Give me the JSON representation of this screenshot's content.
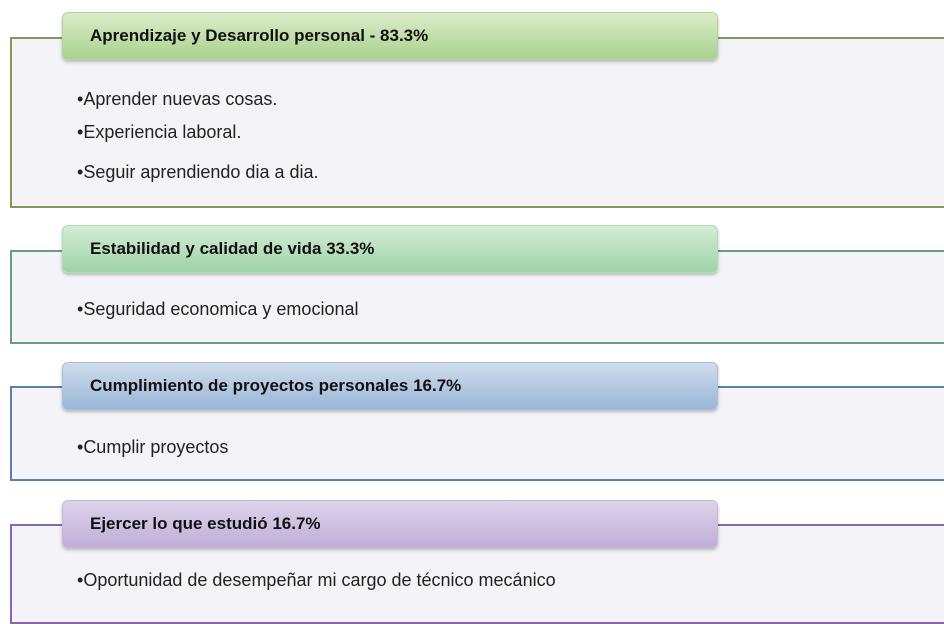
{
  "sections": [
    {
      "title": "Aprendizaje y Desarrollo personal - 83.3%",
      "items": [
        "Aprender nuevas cosas.",
        "Experiencia laboral.",
        "Seguir aprendiendo dia a dia."
      ]
    },
    {
      "title": "Estabilidad y calidad de vida 33.3%",
      "items": [
        "Seguridad economica y emocional"
      ]
    },
    {
      "title": "Cumplimiento de proyectos personales 16.7%",
      "items": [
        "Cumplir proyectos"
      ]
    },
    {
      "title": "Ejercer lo que estudió 16.7%",
      "items": [
        "Oportunidad de desempeñar mi cargo de técnico mecánico"
      ]
    }
  ]
}
